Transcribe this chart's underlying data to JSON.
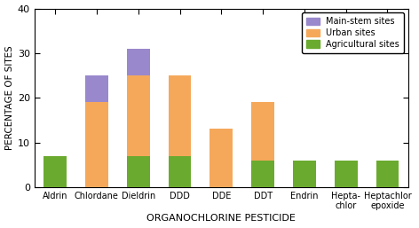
{
  "categories": [
    "Aldrin",
    "Chlordane",
    "Dieldrin",
    "DDD",
    "DDE",
    "DDT",
    "Endrin",
    "Hepta-\nchlor",
    "Heptachlor\nepoxide"
  ],
  "agricultural": [
    7,
    0,
    7,
    7,
    0,
    6,
    6,
    6,
    6
  ],
  "urban": [
    0,
    19,
    18,
    18,
    13,
    13,
    0,
    0,
    0
  ],
  "mainstem": [
    0,
    6,
    6,
    0,
    0,
    0,
    0,
    0,
    0
  ],
  "color_agricultural": "#6aaa2e",
  "color_urban": "#f5a85a",
  "color_mainstem": "#9988cc",
  "xlabel": "ORGANOCHLORINE PESTICIDE",
  "ylabel": "PERCENTAGE OF SITES",
  "ylim": [
    0,
    40
  ],
  "yticks": [
    0,
    10,
    20,
    30,
    40
  ],
  "background_color": "#ffffff",
  "bar_width": 0.55
}
